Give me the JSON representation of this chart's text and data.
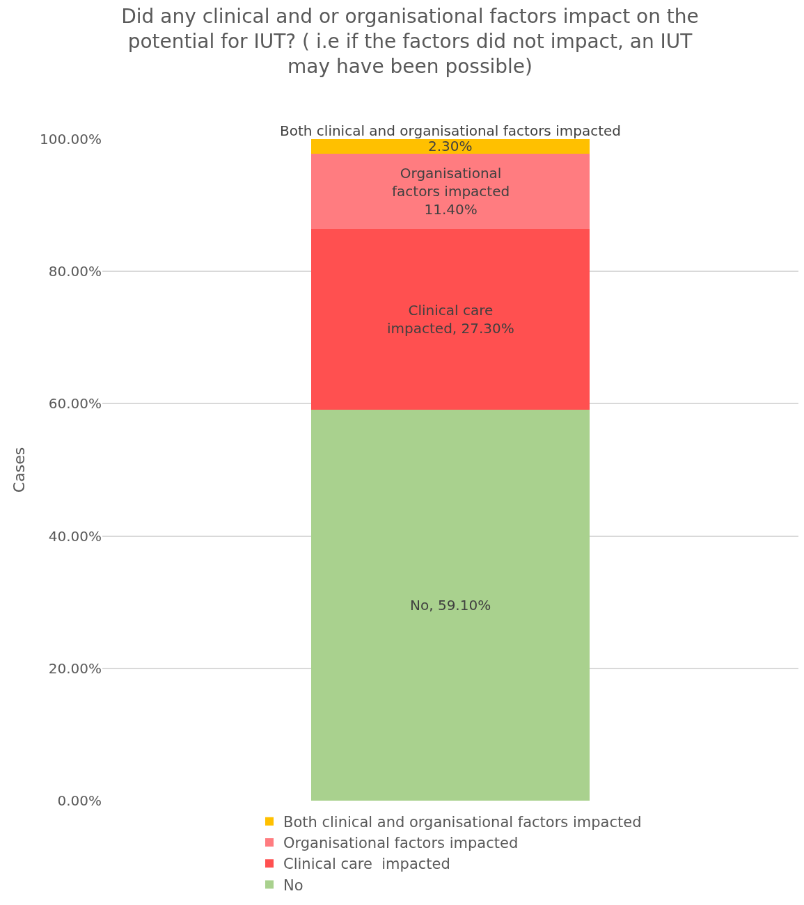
{
  "chart_data": {
    "type": "bar",
    "stacked": true,
    "title": "Did any clinical and or organisational factors impact on the potential for IUT? ( i.e if the factors did not impact, an IUT may have been possible)",
    "ylabel": "Cases",
    "categories": [
      null
    ],
    "series": [
      {
        "name": "No",
        "color": "#a9d18e",
        "values": [
          59.1
        ],
        "value_labels": [
          "No, 59.10%"
        ]
      },
      {
        "name": "Clinical care  impacted",
        "color": "#ff5050",
        "values": [
          27.3
        ],
        "value_labels": [
          "Clinical care\nimpacted, 27.30%"
        ]
      },
      {
        "name": "Organisational factors impacted",
        "color": "#ff7c80",
        "values": [
          11.4
        ],
        "value_labels": [
          "Organisational\nfactors impacted\n11.40%"
        ]
      },
      {
        "name": "Both clinical and organisational factors impacted",
        "color": "#ffc000",
        "values": [
          2.3
        ],
        "value_labels": [
          "2.30%"
        ]
      }
    ],
    "annotations": [
      {
        "text": "Both clinical and organisational factors impacted",
        "y": 100
      }
    ],
    "ylim": [
      0,
      100
    ],
    "yticks": [
      {
        "value": 0,
        "label": "0.00%"
      },
      {
        "value": 20,
        "label": "20.00%"
      },
      {
        "value": 40,
        "label": "40.00%"
      },
      {
        "value": 60,
        "label": "60.00%"
      },
      {
        "value": 80,
        "label": "80.00%"
      },
      {
        "value": 100,
        "label": "100.00%"
      }
    ],
    "grid": "y",
    "legend": "bottom"
  }
}
